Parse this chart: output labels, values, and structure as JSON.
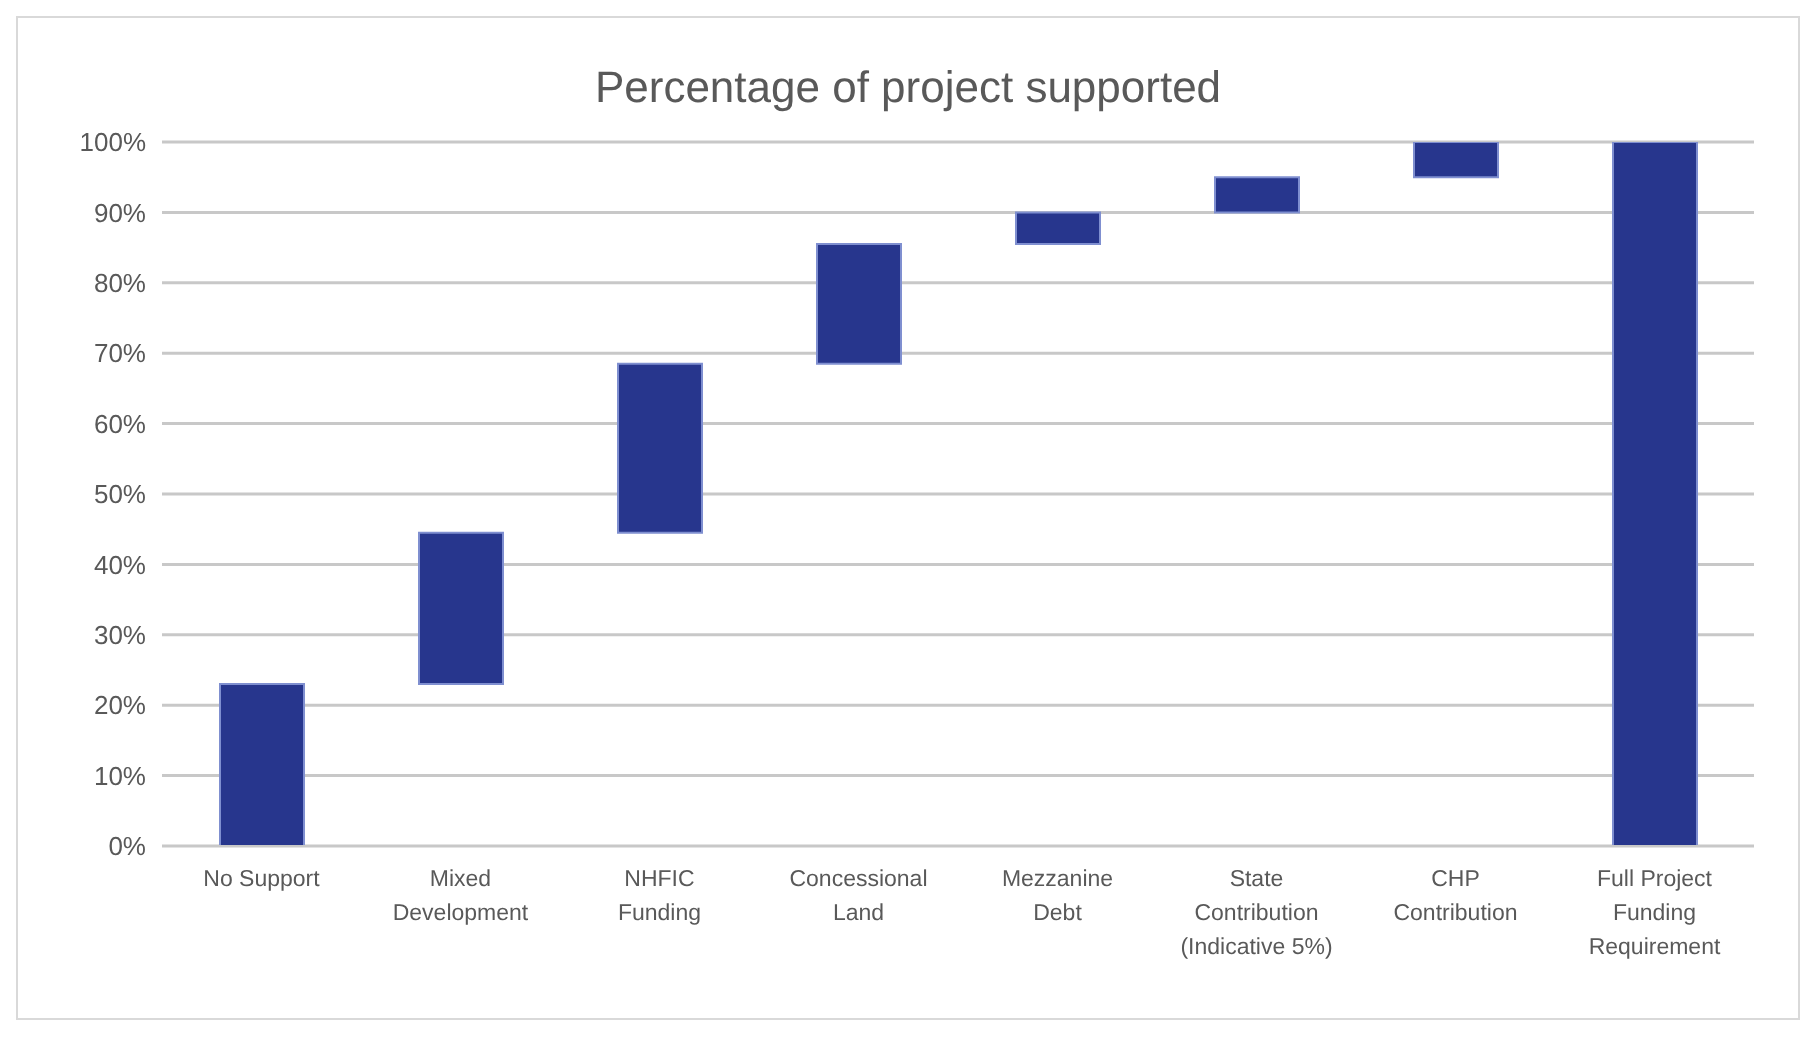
{
  "chart_data": {
    "type": "bar",
    "title": "Percentage of project supported",
    "categories": [
      "No Support",
      "Mixed Development",
      "NHFIC Funding",
      "Concessional Land",
      "Mezzanine Debt",
      "State Contribution (Indicative 5%)",
      "CHP Contribution",
      "Full Project Funding Requirement"
    ],
    "base": [
      0,
      23,
      44.5,
      68.5,
      85.5,
      90,
      95,
      0
    ],
    "values": [
      23,
      21.5,
      24,
      17,
      4.5,
      5,
      5,
      100
    ],
    "color": "#27368d",
    "ylim": [
      0,
      100
    ],
    "yticks": [
      {
        "value": 0,
        "label": "0%"
      },
      {
        "value": 10,
        "label": "10%"
      },
      {
        "value": 20,
        "label": "20%"
      },
      {
        "value": 30,
        "label": "30%"
      },
      {
        "value": 40,
        "label": "40%"
      },
      {
        "value": 50,
        "label": "50%"
      },
      {
        "value": 60,
        "label": "60%"
      },
      {
        "value": 70,
        "label": "70%"
      },
      {
        "value": 80,
        "label": "80%"
      },
      {
        "value": 90,
        "label": "90%"
      },
      {
        "value": 100,
        "label": "100%"
      }
    ],
    "grid": "y",
    "legend": false
  }
}
